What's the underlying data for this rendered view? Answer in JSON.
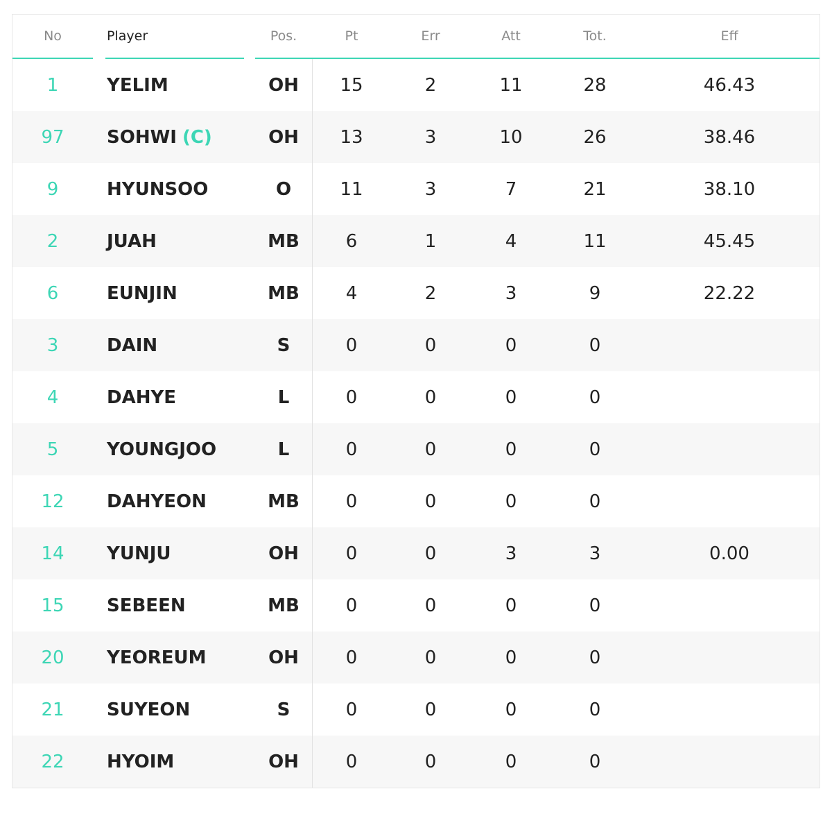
{
  "table": {
    "columns": [
      "No",
      "Player",
      "Pos.",
      "Pt",
      "Err",
      "Att",
      "Tot.",
      "Eff"
    ],
    "rows": [
      {
        "no": 1,
        "player": "YELIM",
        "pos": "OH",
        "stats": [
          15,
          2,
          11,
          28
        ],
        "eff": "46.43"
      },
      {
        "no": 97,
        "player": "SOHWI",
        "captain": "(C)",
        "pos": "OH",
        "stats": [
          13,
          3,
          10,
          26
        ],
        "eff": "38.46"
      },
      {
        "no": 9,
        "player": "HYUNSOO",
        "pos": "O",
        "stats": [
          11,
          3,
          7,
          21
        ],
        "eff": "38.10"
      },
      {
        "no": 2,
        "player": "JUAH",
        "pos": "MB",
        "stats": [
          6,
          1,
          4,
          11
        ],
        "eff": "45.45"
      },
      {
        "no": 6,
        "player": "EUNJIN",
        "pos": "MB",
        "stats": [
          4,
          2,
          3,
          9
        ],
        "eff": "22.22"
      },
      {
        "no": 3,
        "player": "DAIN",
        "pos": "S",
        "stats": [
          0,
          0,
          0,
          0
        ]
      },
      {
        "no": 4,
        "player": "DAHYE",
        "pos": "L",
        "stats": [
          0,
          0,
          0,
          0
        ]
      },
      {
        "no": 5,
        "player": "YOUNGJOO",
        "pos": "L",
        "stats": [
          0,
          0,
          0,
          0
        ]
      },
      {
        "no": 12,
        "player": "DAHYEON",
        "pos": "MB",
        "stats": [
          0,
          0,
          0,
          0
        ]
      },
      {
        "no": 14,
        "player": "YUNJU",
        "pos": "OH",
        "stats": [
          0,
          0,
          3,
          3
        ],
        "eff": "0.00"
      },
      {
        "no": 15,
        "player": "SEBEEN",
        "pos": "MB",
        "stats": [
          0,
          0,
          0,
          0
        ]
      },
      {
        "no": 20,
        "player": "YEOREUM",
        "pos": "OH",
        "stats": [
          0,
          0,
          0,
          0
        ]
      },
      {
        "no": 21,
        "player": "SUYEON",
        "pos": "S",
        "stats": [
          0,
          0,
          0,
          0
        ]
      },
      {
        "no": 22,
        "player": "HYOIM",
        "pos": "OH",
        "stats": [
          0,
          0,
          0,
          0
        ]
      }
    ]
  }
}
